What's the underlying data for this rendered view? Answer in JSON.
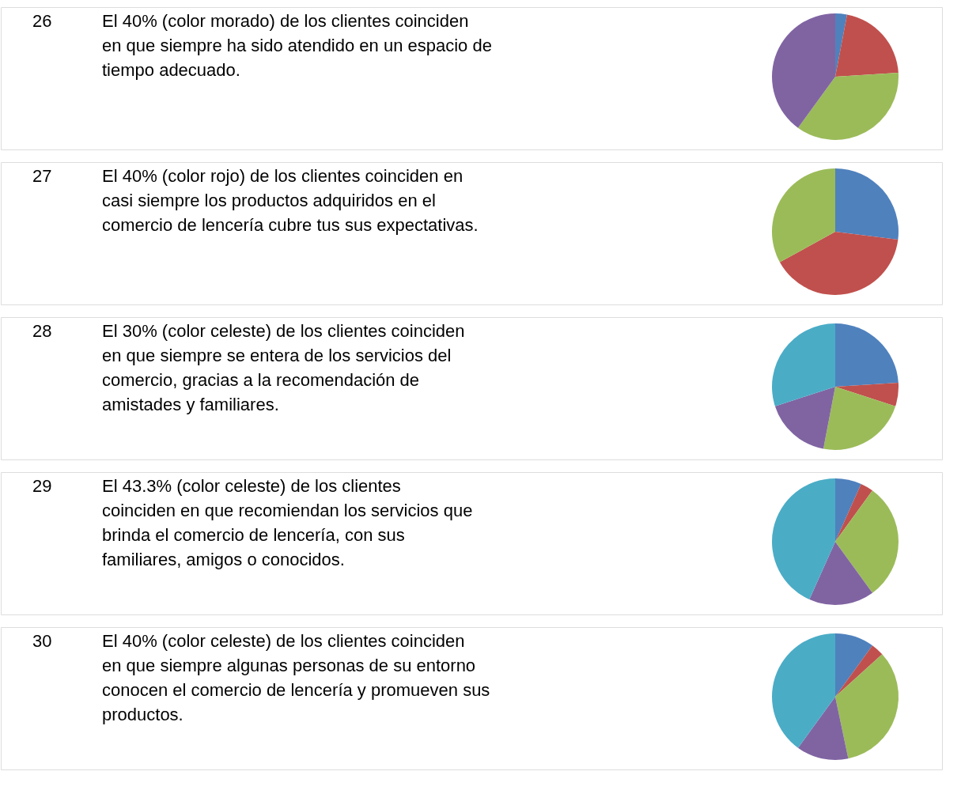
{
  "chart_data": [
    {
      "type": "pie",
      "annotations": [
        "26",
        "El 40% (color morado) de los clientes coinciden en que siempre ha sido atendido en un espacio de tiempo adecuado."
      ],
      "categories": [
        null,
        null,
        null,
        null
      ],
      "values": [
        3,
        21,
        36,
        40
      ],
      "colors": [
        "#4f81bd",
        "#c0504d",
        "#9bbb59",
        "#8064a2"
      ]
    },
    {
      "type": "pie",
      "annotations": [
        "27",
        "El 40% (color rojo) de los clientes coinciden en casi siempre los productos adquiridos en el comercio de lencería cubre tus sus expectativas."
      ],
      "categories": [
        null,
        null,
        null
      ],
      "values": [
        27,
        40,
        33
      ],
      "colors": [
        "#4f81bd",
        "#c0504d",
        "#9bbb59"
      ]
    },
    {
      "type": "pie",
      "annotations": [
        "28",
        "El 30% (color celeste) de los clientes coinciden en que siempre se entera de los servicios del comercio, gracias a la recomendación de amistades y familiares."
      ],
      "categories": [
        null,
        null,
        null,
        null,
        null
      ],
      "values": [
        24,
        6,
        23,
        17,
        30
      ],
      "colors": [
        "#4f81bd",
        "#c0504d",
        "#9bbb59",
        "#8064a2",
        "#4bacc6"
      ]
    },
    {
      "type": "pie",
      "annotations": [
        "29",
        "El 43.3% (color celeste) de los clientes coinciden en que recomiendan los servicios que brinda el comercio de lencería, con sus familiares, amigos o conocidos."
      ],
      "categories": [
        null,
        null,
        null,
        null,
        null
      ],
      "values": [
        6.7,
        3.3,
        30,
        16.7,
        43.3
      ],
      "colors": [
        "#4f81bd",
        "#c0504d",
        "#9bbb59",
        "#8064a2",
        "#4bacc6"
      ]
    },
    {
      "type": "pie",
      "annotations": [
        "30",
        "El 40% (color celeste) de los clientes coinciden en que siempre algunas personas de su entorno conocen el comercio de lencería y promueven sus productos."
      ],
      "categories": [
        null,
        null,
        null,
        null,
        null
      ],
      "values": [
        10,
        3.3,
        33.4,
        13.3,
        40
      ],
      "colors": [
        "#4f81bd",
        "#c0504d",
        "#9bbb59",
        "#8064a2",
        "#4bacc6"
      ]
    }
  ]
}
